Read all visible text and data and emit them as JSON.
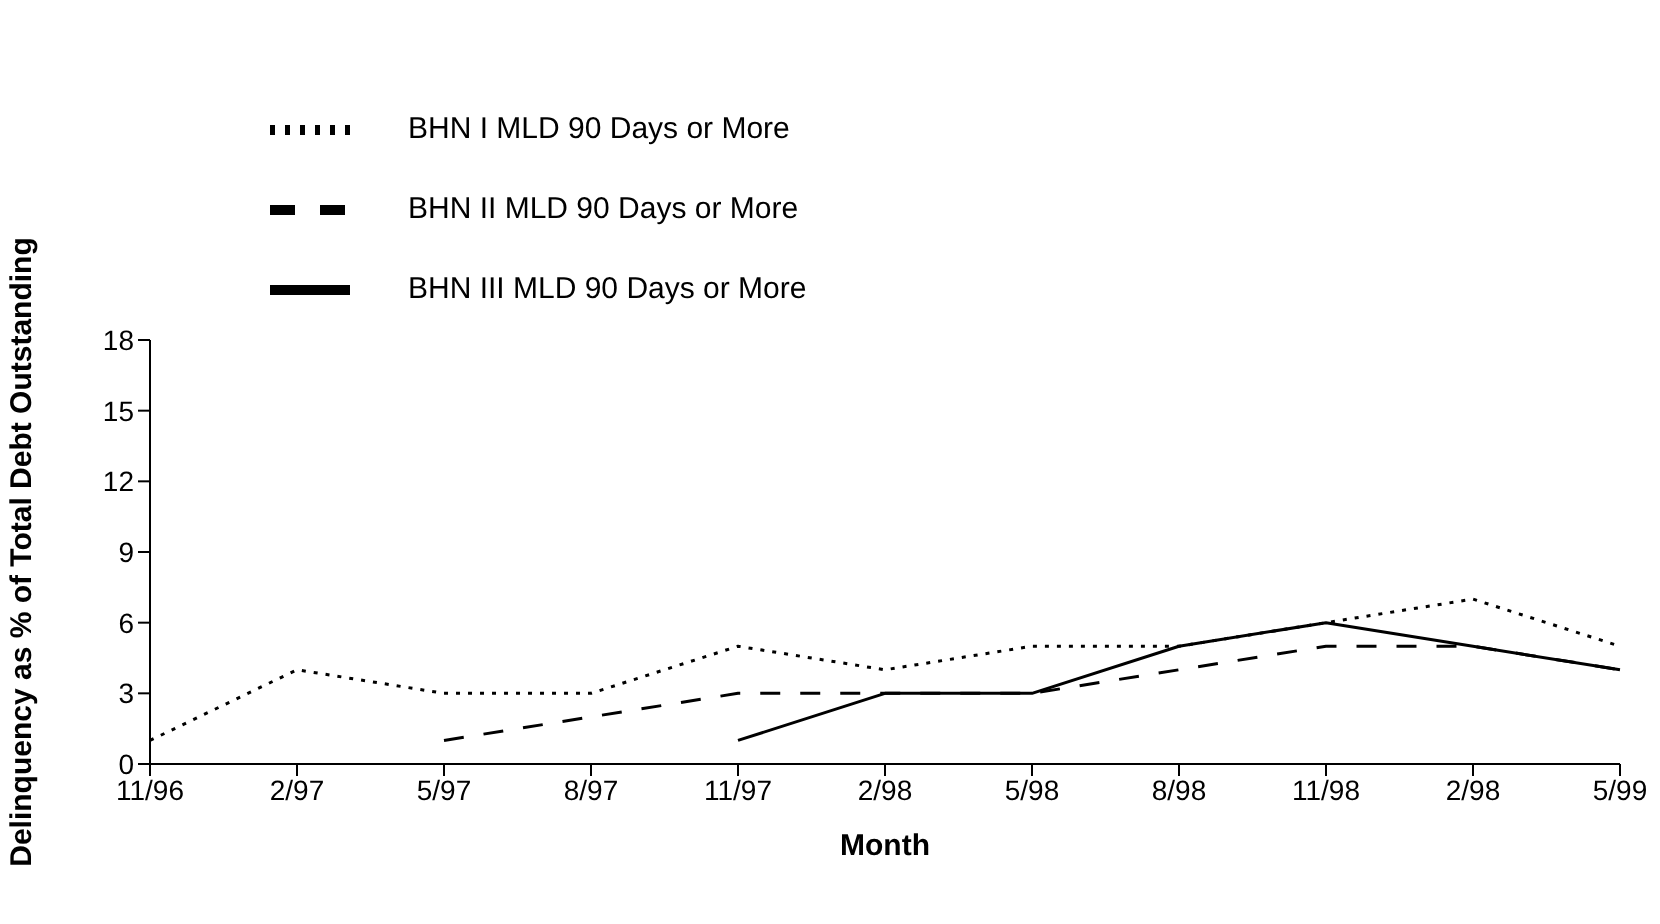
{
  "chart_data": {
    "type": "line",
    "xlabel": "Month",
    "ylabel": "Delinquency as % of Total Debt Outstanding",
    "categories": [
      "11/96",
      "2/97",
      "5/97",
      "8/97",
      "11/97",
      "2/98",
      "5/98",
      "8/98",
      "11/98",
      "2/98",
      "5/99"
    ],
    "series": [
      {
        "name": "BHN I MLD 90 Days or More",
        "color": "#000000",
        "line_style": "dotted",
        "values": [
          1,
          4,
          3,
          3,
          5,
          4,
          5,
          5,
          6,
          7,
          5
        ]
      },
      {
        "name": "BHN II MLD 90 Days or More",
        "color": "#000000",
        "line_style": "dashed",
        "values": [
          null,
          null,
          1,
          2,
          3,
          3,
          3,
          4,
          5,
          5,
          4
        ]
      },
      {
        "name": "BHN III MLD 90 Days or More",
        "color": "#000000",
        "line_style": "solid",
        "values": [
          null,
          null,
          null,
          null,
          1,
          3,
          3,
          5,
          6,
          5,
          4
        ]
      }
    ],
    "ylim": [
      0,
      18
    ],
    "yticks": [
      0,
      3,
      6,
      9,
      12,
      15,
      18
    ],
    "grid": false,
    "legend": "top left",
    "marker": "none"
  }
}
